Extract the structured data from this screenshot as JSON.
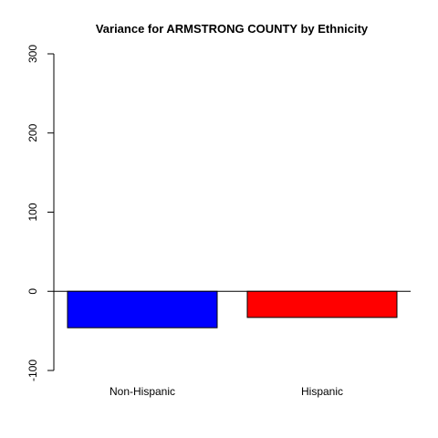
{
  "chart_data": {
    "type": "bar",
    "title": "Variance for ARMSTRONG COUNTY by Ethnicity",
    "xlabel": "",
    "ylabel": "",
    "categories": [
      "Non-Hispanic",
      "Hispanic"
    ],
    "values": [
      -46,
      -33
    ],
    "colors": [
      "#0000ff",
      "#ff0000"
    ],
    "ylim": [
      -100,
      300
    ],
    "yticks": [
      -100,
      0,
      100,
      200,
      300
    ],
    "grid": false,
    "reference_line": 0
  }
}
